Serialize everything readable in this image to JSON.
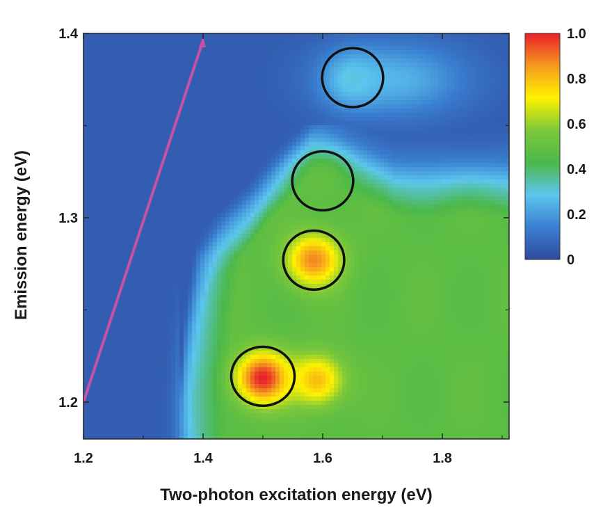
{
  "chart_data": {
    "type": "heatmap",
    "title": "",
    "xlabel": "Two-photon excitation energy (eV)",
    "ylabel": "Emission energy (eV)",
    "xlim": [
      1.2,
      1.92
    ],
    "ylim": [
      1.18,
      1.4
    ],
    "x_ticks": [
      {
        "value": 1.2,
        "label": "1.2"
      },
      {
        "value": 1.4,
        "label": "1.4"
      },
      {
        "value": 1.6,
        "label": "1.6"
      },
      {
        "value": 1.8,
        "label": "1.8"
      }
    ],
    "y_ticks": [
      {
        "value": 1.2,
        "label": "1.2"
      },
      {
        "value": 1.3,
        "label": "1.3"
      },
      {
        "value": 1.4,
        "label": "1.4"
      }
    ],
    "colorbar": {
      "range": [
        0,
        1.0
      ],
      "ticks": [
        {
          "value": 0,
          "label": "0"
        },
        {
          "value": 0.2,
          "label": "0.2"
        },
        {
          "value": 0.4,
          "label": "0.4"
        },
        {
          "value": 0.6,
          "label": "0.6"
        },
        {
          "value": 0.8,
          "label": "0.8"
        },
        {
          "value": 1.0,
          "label": "1.0"
        }
      ],
      "colors": [
        "#2e4a9e",
        "#3a7fd0",
        "#5cc6ee",
        "#4cb84a",
        "#7cc83a",
        "#fff200",
        "#f59a1f",
        "#e8202a"
      ]
    },
    "intensity_profile": {
      "background": 0.05,
      "emission_edge_x": [
        1.36,
        1.36,
        1.37,
        1.39,
        1.43,
        1.48,
        1.52,
        1.58,
        1.72,
        1.92
      ],
      "emission_edge_y": [
        1.18,
        1.2,
        1.24,
        1.28,
        1.3,
        1.315,
        1.33,
        1.35,
        1.33,
        1.33
      ],
      "plateau": 0.48,
      "hotspots": [
        {
          "x": 1.5,
          "y": 1.213,
          "value": 1.0
        },
        {
          "x": 1.59,
          "y": 1.212,
          "value": 0.8
        },
        {
          "x": 1.585,
          "y": 1.277,
          "value": 0.88
        },
        {
          "x": 1.6,
          "y": 1.32,
          "value": 0.5
        },
        {
          "x": 1.65,
          "y": 1.375,
          "value": 0.3
        }
      ]
    },
    "annotations": {
      "circles": [
        {
          "x": 1.65,
          "y": 1.376,
          "rx": 0.051,
          "ry": 0.016
        },
        {
          "x": 1.6,
          "y": 1.32,
          "rx": 0.051,
          "ry": 0.016
        },
        {
          "x": 1.585,
          "y": 1.277,
          "rx": 0.051,
          "ry": 0.016
        },
        {
          "x": 1.5,
          "y": 1.214,
          "rx": 0.053,
          "ry": 0.016
        }
      ],
      "diagonal_line": {
        "from": [
          1.2,
          1.2
        ],
        "to": [
          1.4,
          1.4
        ],
        "color": "#c94fa8"
      }
    }
  }
}
